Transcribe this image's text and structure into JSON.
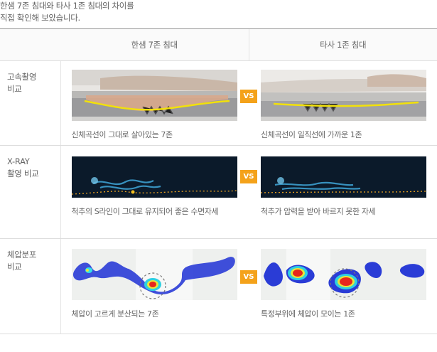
{
  "intro": {
    "line1": "한샘 7존 침대와 타사 1존 침대의 차이를",
    "line2": "직접 확인해 보았습니다."
  },
  "table": {
    "headers": [
      "",
      "한샘 7존 침대",
      "타사 1존 침대"
    ],
    "vs_label": "VS",
    "rows": [
      {
        "label_line1": "고속촬영",
        "label_line2": "비교",
        "left_caption": "신체곡선이 그대로 살아있는 7존",
        "right_caption": "신체곡선이 일직선에 가까운 1존"
      },
      {
        "label_line1": "X-RAY",
        "label_line2": "촬영 비교",
        "left_caption": "척추의 S라인이 그대로 유지되어 좋은 수면자세",
        "right_caption": "척추가 압력을 받아 바르지 못한 자세"
      },
      {
        "label_line1": "체압분포",
        "label_line2": "비교",
        "left_caption": "체압이 고르게 분산되는 7존",
        "right_caption": "특정부위에 체압이 모이는 1존"
      }
    ]
  },
  "colors": {
    "vs_badge": "#f4a21a",
    "curve_line": "#f2e10a",
    "xray_bg": "#0b1a2a",
    "xray_dots": "#e8a020"
  }
}
